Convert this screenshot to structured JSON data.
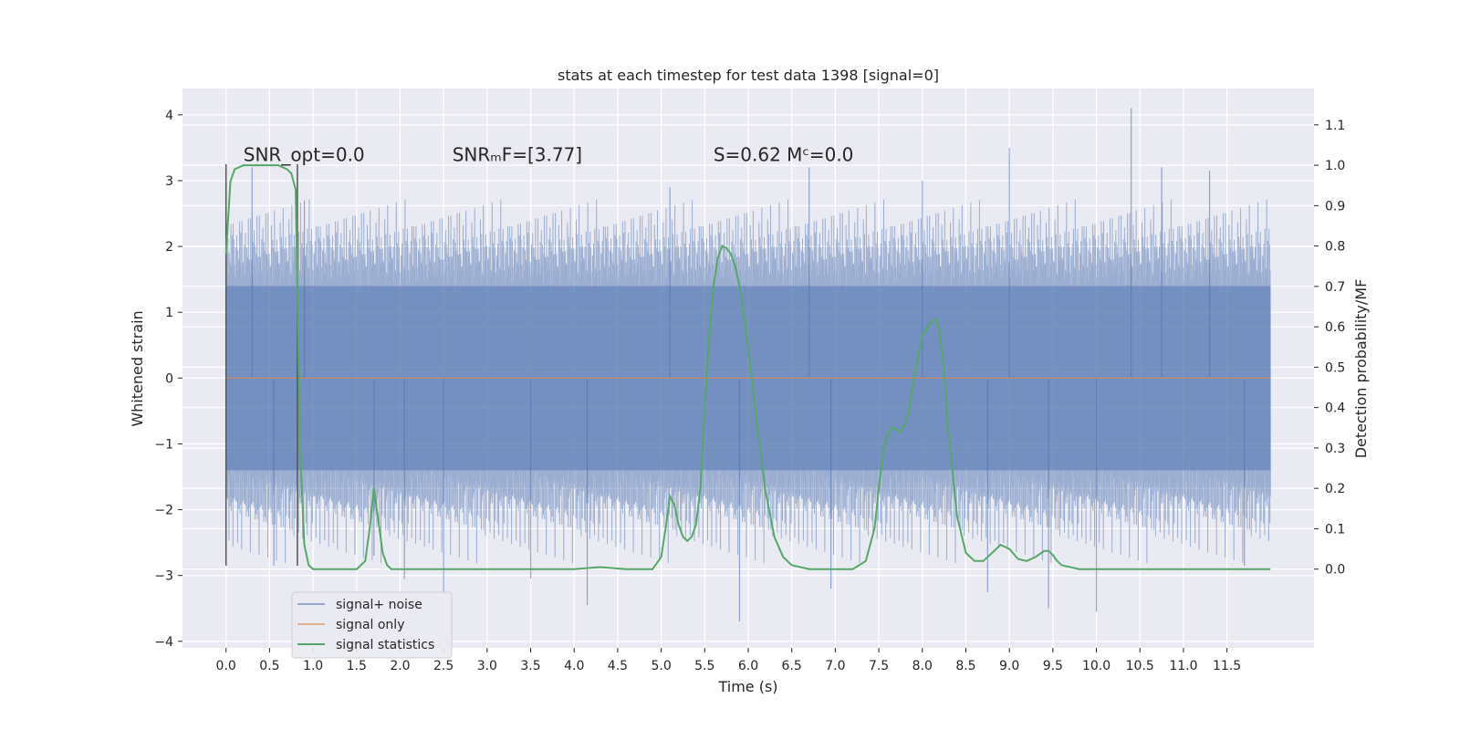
{
  "chart_data": {
    "type": "line",
    "title": "stats at each timestep for test data 1398 [signal=0]",
    "xlabel": "Time (s)",
    "ylabel": "Whitened strain",
    "y2label": "Detection probability/MF",
    "xlim": [
      -0.5,
      12.5
    ],
    "ylim": [
      -4.1,
      4.4
    ],
    "y2lim": [
      -0.195,
      1.19
    ],
    "x_ticks": [
      0.0,
      0.5,
      1.0,
      1.5,
      2.0,
      2.5,
      3.0,
      3.5,
      4.0,
      4.5,
      5.0,
      5.5,
      6.0,
      6.5,
      7.0,
      7.5,
      8.0,
      8.5,
      9.0,
      9.5,
      10.0,
      10.5,
      11.0,
      11.5
    ],
    "x_tick_labels": [
      "0.0",
      "0.5",
      "1.0",
      "1.5",
      "2.0",
      "2.5",
      "3.0",
      "3.5",
      "4.0",
      "4.5",
      "5.0",
      "5.5",
      "6.0",
      "6.5",
      "7.0",
      "7.5",
      "8.0",
      "8.5",
      "9.0",
      "9.5",
      "10.0",
      "10.5",
      "11.0",
      "11.5"
    ],
    "y_ticks": [
      -4,
      -3,
      -2,
      -1,
      0,
      1,
      2,
      3,
      4
    ],
    "y_tick_labels": [
      "−4",
      "−3",
      "−2",
      "−1",
      "0",
      "1",
      "2",
      "3",
      "4"
    ],
    "y2_ticks": [
      0.0,
      0.1,
      0.2,
      0.3,
      0.4,
      0.5,
      0.6,
      0.7,
      0.8,
      0.9,
      1.0,
      1.1
    ],
    "y2_tick_labels": [
      "0.0",
      "0.1",
      "0.2",
      "0.3",
      "0.4",
      "0.5",
      "0.6",
      "0.7",
      "0.8",
      "0.9",
      "1.0",
      "1.1"
    ],
    "grid": true,
    "legend": "lower-left",
    "annotations": [
      {
        "text": "SNR_opt=0.0",
        "x": 0.2,
        "y": 3.3
      },
      {
        "text": "SNRₘF=[3.77]",
        "x": 2.6,
        "y": 3.3
      },
      {
        "text": "S=0.62   Mᶜ=0.0",
        "x": 5.6,
        "y": 3.3
      }
    ],
    "window_markers_x": [
      0.0,
      0.82
    ],
    "window_markers_y": [
      -2.85,
      3.25
    ],
    "series": [
      {
        "name": "signal+ noise",
        "color": "#4c72b0",
        "alpha": 0.5,
        "x_range": [
          0.0,
          12.0
        ],
        "band_pattern": [
          -1.4,
          1.4,
          -1.6,
          1.7,
          -1.5,
          1.5,
          -1.8,
          2.0,
          -1.3,
          1.3,
          -2.1,
          1.9,
          -1.5,
          1.6,
          -1.7,
          1.4,
          -1.4,
          2.3,
          -1.9,
          1.5,
          -1.6,
          1.8,
          -1.3,
          1.4,
          -2.4,
          2.1,
          -1.5,
          1.7,
          -1.8,
          1.6
        ],
        "band_pattern_repeats_every_s": 0.1,
        "spikes": [
          {
            "x": 0.3,
            "y": 3.2
          },
          {
            "x": 0.55,
            "y": -2.85
          },
          {
            "x": 0.9,
            "y": 2.7
          },
          {
            "x": 1.7,
            "y": -2.7
          },
          {
            "x": 2.05,
            "y": -3.05
          },
          {
            "x": 2.5,
            "y": -3.3
          },
          {
            "x": 3.5,
            "y": -3.05
          },
          {
            "x": 4.15,
            "y": -3.45
          },
          {
            "x": 5.1,
            "y": 2.9
          },
          {
            "x": 5.9,
            "y": -3.7
          },
          {
            "x": 6.7,
            "y": 3.2
          },
          {
            "x": 6.95,
            "y": -3.2
          },
          {
            "x": 8.0,
            "y": 3.0
          },
          {
            "x": 8.75,
            "y": -3.25
          },
          {
            "x": 9.0,
            "y": 3.5
          },
          {
            "x": 9.45,
            "y": -3.5
          },
          {
            "x": 10.0,
            "y": -3.55
          },
          {
            "x": 10.4,
            "y": 4.1
          },
          {
            "x": 10.75,
            "y": 3.2
          },
          {
            "x": 11.3,
            "y": 3.15
          },
          {
            "x": 11.7,
            "y": -2.85
          }
        ]
      },
      {
        "name": "signal only",
        "color": "#dd8452",
        "x": [
          0.0,
          12.0
        ],
        "y": [
          0.0,
          0.0
        ]
      },
      {
        "name": "signal statistics",
        "color": "#55a868",
        "axis": "right",
        "x": [
          0.0,
          0.05,
          0.1,
          0.2,
          0.3,
          0.4,
          0.5,
          0.6,
          0.7,
          0.75,
          0.8,
          0.85,
          0.9,
          0.95,
          1.0,
          1.1,
          1.2,
          1.3,
          1.4,
          1.5,
          1.6,
          1.65,
          1.7,
          1.75,
          1.8,
          1.85,
          1.9,
          2.0,
          2.2,
          2.5,
          3.0,
          3.5,
          4.0,
          4.3,
          4.6,
          4.9,
          5.0,
          5.05,
          5.1,
          5.15,
          5.2,
          5.25,
          5.3,
          5.35,
          5.4,
          5.45,
          5.5,
          5.55,
          5.6,
          5.65,
          5.7,
          5.75,
          5.8,
          5.85,
          5.9,
          6.0,
          6.1,
          6.2,
          6.3,
          6.4,
          6.5,
          6.6,
          6.7,
          6.8,
          7.0,
          7.2,
          7.35,
          7.45,
          7.5,
          7.55,
          7.6,
          7.65,
          7.7,
          7.75,
          7.8,
          7.85,
          7.9,
          8.0,
          8.1,
          8.15,
          8.2,
          8.25,
          8.3,
          8.4,
          8.5,
          8.6,
          8.7,
          8.8,
          8.9,
          9.0,
          9.1,
          9.2,
          9.3,
          9.4,
          9.45,
          9.5,
          9.55,
          9.6,
          9.7,
          9.8,
          10.0,
          10.5,
          11.0,
          11.5,
          11.9,
          12.0
        ],
        "y": [
          0.78,
          0.96,
          0.99,
          1.0,
          1.0,
          1.0,
          1.0,
          1.0,
          0.99,
          0.98,
          0.94,
          0.3,
          0.06,
          0.01,
          0.0,
          0.0,
          0.0,
          0.0,
          0.0,
          0.0,
          0.02,
          0.1,
          0.2,
          0.12,
          0.04,
          0.01,
          0.0,
          0.0,
          0.0,
          0.0,
          0.0,
          0.0,
          0.0,
          0.005,
          0.0,
          0.0,
          0.03,
          0.1,
          0.18,
          0.16,
          0.11,
          0.08,
          0.07,
          0.08,
          0.11,
          0.2,
          0.4,
          0.57,
          0.7,
          0.77,
          0.8,
          0.795,
          0.78,
          0.75,
          0.7,
          0.55,
          0.36,
          0.19,
          0.08,
          0.03,
          0.01,
          0.005,
          0.0,
          0.0,
          0.0,
          0.0,
          0.02,
          0.1,
          0.2,
          0.29,
          0.33,
          0.35,
          0.345,
          0.34,
          0.36,
          0.4,
          0.47,
          0.58,
          0.61,
          0.62,
          0.59,
          0.49,
          0.34,
          0.13,
          0.04,
          0.02,
          0.02,
          0.04,
          0.06,
          0.05,
          0.025,
          0.02,
          0.03,
          0.045,
          0.045,
          0.035,
          0.02,
          0.01,
          0.005,
          0.0,
          0.0,
          0.0,
          0.0,
          0.0,
          0.0,
          0.0
        ]
      }
    ]
  }
}
